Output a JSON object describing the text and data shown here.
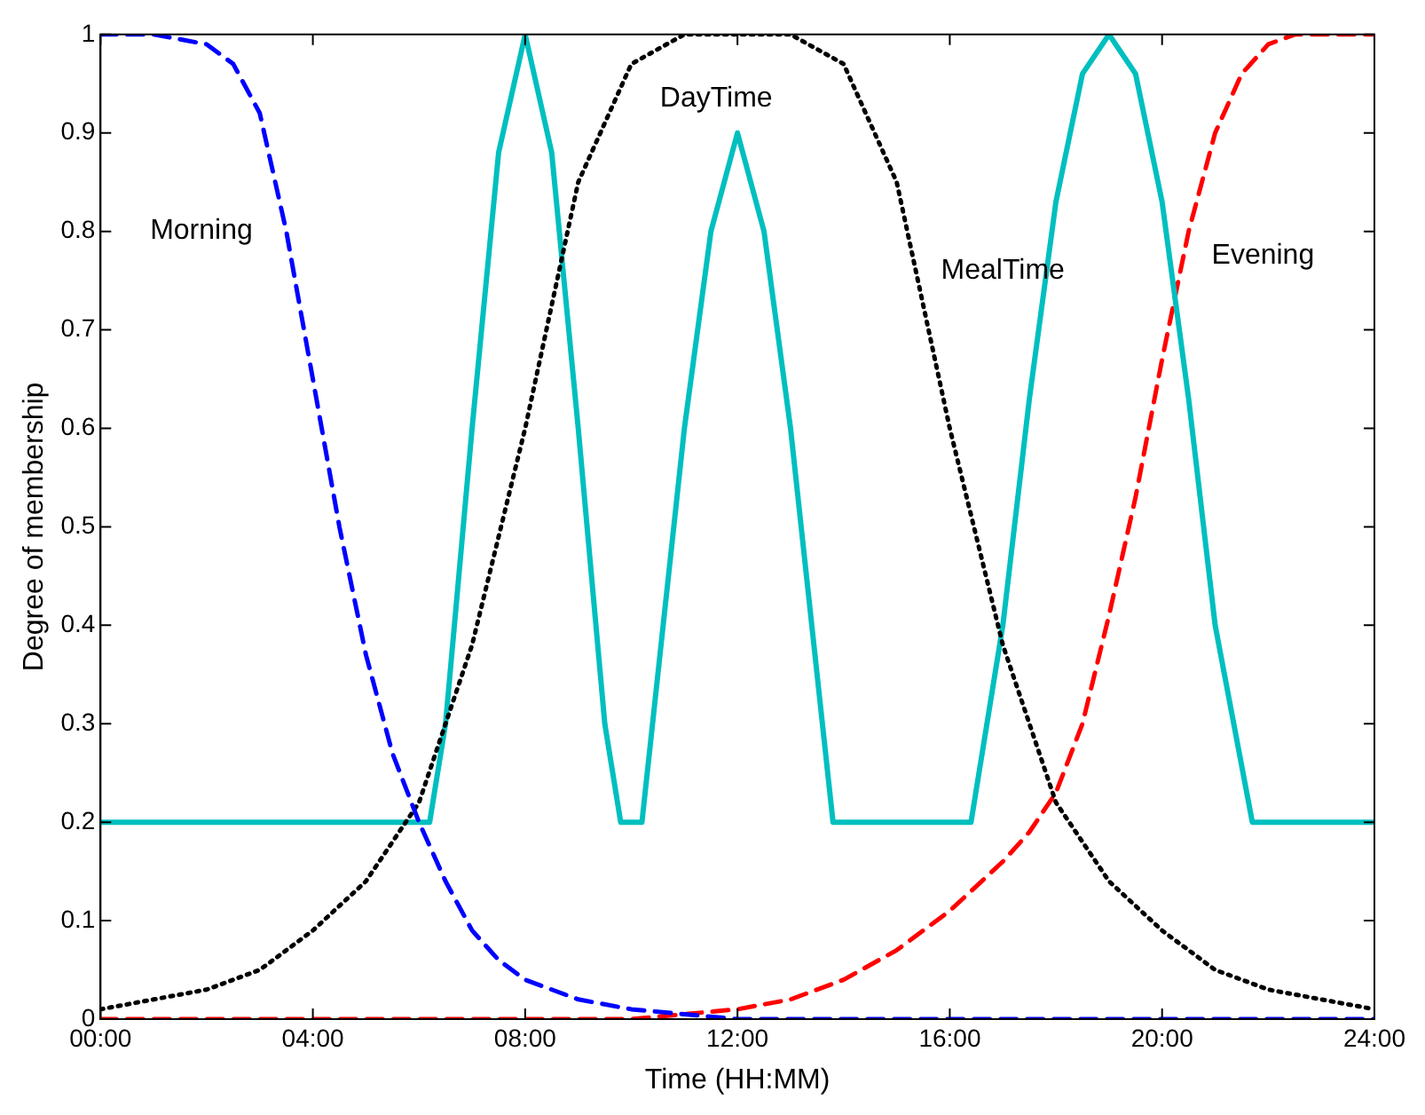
{
  "chart_data": {
    "type": "line",
    "xlabel": "Time (HH:MM)",
    "ylabel": "Degree of membership",
    "xlim": [
      0,
      24
    ],
    "xticks": [
      {
        "value": 0,
        "label": "00:00"
      },
      {
        "value": 4,
        "label": "04:00"
      },
      {
        "value": 8,
        "label": "08:00"
      },
      {
        "value": 12,
        "label": "12:00"
      },
      {
        "value": 16,
        "label": "16:00"
      },
      {
        "value": 20,
        "label": "20:00"
      },
      {
        "value": 24,
        "label": "24:00"
      }
    ],
    "ylim": [
      0,
      1
    ],
    "yticks": [
      0,
      0.1,
      0.2,
      0.3,
      0.4,
      0.5,
      0.6,
      0.7,
      0.8,
      0.9,
      1
    ],
    "grid": false,
    "legend": false,
    "marker": "none",
    "series": [
      {
        "name": "Morning",
        "color": "#0000ff",
        "line_style": "dashed",
        "x": [
          0,
          1,
          2,
          2.5,
          3,
          3.5,
          4,
          4.5,
          5,
          5.5,
          6,
          6.5,
          7,
          7.5,
          8,
          9,
          10,
          11,
          12,
          24
        ],
        "values": [
          1,
          1,
          0.99,
          0.97,
          0.92,
          0.8,
          0.65,
          0.5,
          0.37,
          0.27,
          0.2,
          0.14,
          0.09,
          0.06,
          0.04,
          0.02,
          0.01,
          0.005,
          0,
          0
        ]
      },
      {
        "name": "DayTime",
        "color": "#000000",
        "line_style": "dotted",
        "x": [
          0,
          1,
          2,
          3,
          4,
          5,
          6,
          7,
          8,
          9,
          10,
          11,
          12,
          13,
          14,
          15,
          16,
          17,
          18,
          19,
          20,
          21,
          22,
          23,
          24
        ],
        "values": [
          0.01,
          0.02,
          0.03,
          0.05,
          0.09,
          0.14,
          0.22,
          0.38,
          0.6,
          0.85,
          0.97,
          1,
          1,
          1,
          0.97,
          0.85,
          0.6,
          0.38,
          0.22,
          0.14,
          0.09,
          0.05,
          0.03,
          0.02,
          0.01
        ]
      },
      {
        "name": "MealTime",
        "color": "#00bfbf",
        "line_style": "solid",
        "x": [
          0,
          6.2,
          6.5,
          7,
          7.5,
          8,
          8.5,
          9,
          9.5,
          9.8,
          10.2,
          10.5,
          11,
          11.5,
          12,
          12.5,
          13,
          13.5,
          13.8,
          16.4,
          17,
          17.5,
          18,
          18.5,
          19,
          19.5,
          20,
          20.5,
          21,
          21.7,
          24
        ],
        "values": [
          0.2,
          0.2,
          0.3,
          0.6,
          0.88,
          1,
          0.88,
          0.6,
          0.3,
          0.2,
          0.2,
          0.35,
          0.6,
          0.8,
          0.9,
          0.8,
          0.6,
          0.35,
          0.2,
          0.2,
          0.4,
          0.63,
          0.83,
          0.96,
          1,
          0.96,
          0.83,
          0.63,
          0.4,
          0.2,
          0.2
        ]
      },
      {
        "name": "Evening",
        "color": "#ff0000",
        "line_style": "dashed",
        "x": [
          0,
          10,
          12,
          13,
          14,
          15,
          16,
          17,
          17.5,
          18,
          18.5,
          19,
          19.5,
          20,
          20.5,
          21,
          21.5,
          22,
          22.5,
          24
        ],
        "values": [
          0,
          0,
          0.01,
          0.02,
          0.04,
          0.07,
          0.11,
          0.16,
          0.19,
          0.23,
          0.3,
          0.41,
          0.53,
          0.67,
          0.8,
          0.9,
          0.96,
          0.99,
          1,
          1
        ]
      }
    ]
  }
}
